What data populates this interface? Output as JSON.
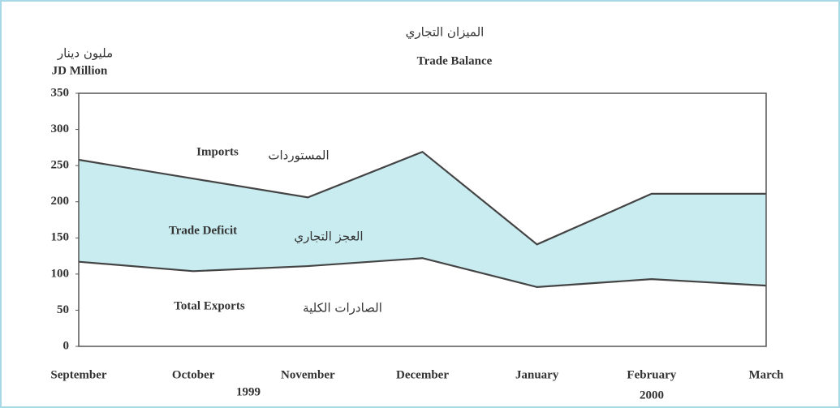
{
  "chart_data": {
    "type": "area_band",
    "title": "الميزان التجاري",
    "subtitle": "Trade Balance",
    "y_label": [
      "مليون دينار",
      "JD Million"
    ],
    "categories": [
      "September",
      "October",
      "November",
      "December",
      "January",
      "February",
      "March"
    ],
    "years": [
      "1999",
      "2000"
    ],
    "series": [
      {
        "name": "Imports",
        "color": "#444444",
        "values": [
          258,
          232,
          206,
          269,
          141,
          211,
          211
        ]
      },
      {
        "name": "Total Exports",
        "color": "#444444",
        "values": [
          117,
          104,
          111,
          122,
          82,
          93,
          84
        ]
      }
    ],
    "fill_color": "#c9ecf1",
    "annotations": [
      "Imports",
      "المستوردات",
      "Trade Deficit",
      "العجز التجاري",
      "Total Exports",
      "الصادرات الكلية"
    ],
    "ylim": [
      0,
      350
    ],
    "yticks": [
      0,
      50,
      100,
      150,
      200,
      250,
      300,
      350
    ],
    "grid": false
  }
}
